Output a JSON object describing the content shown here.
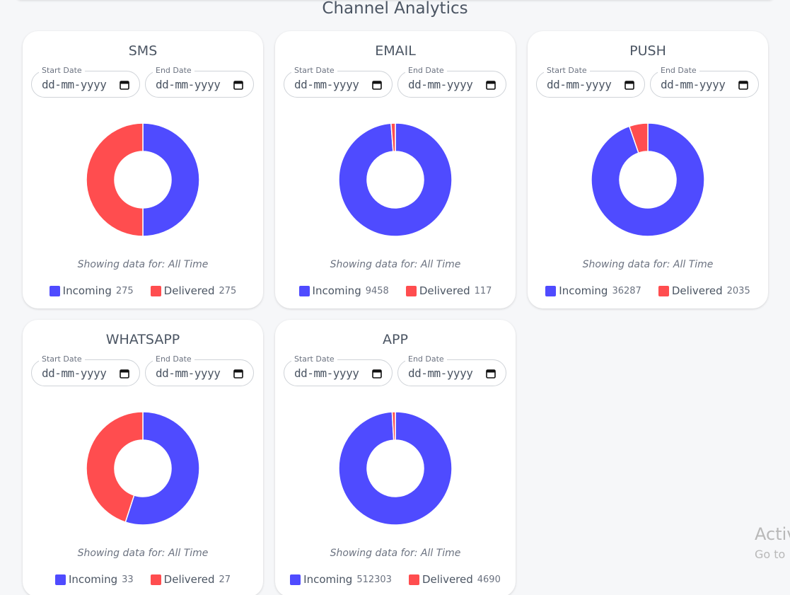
{
  "page_title": "Channel Analytics",
  "chart_data": [
    {
      "type": "pie",
      "donut": true,
      "title": "SMS",
      "categories": [
        "Incoming",
        "Delivered"
      ],
      "values": [
        275,
        275
      ],
      "colors": [
        "#4f4bff",
        "#ff4d4f"
      ]
    },
    {
      "type": "pie",
      "donut": true,
      "title": "EMAIL",
      "categories": [
        "Incoming",
        "Delivered"
      ],
      "values": [
        9458,
        117
      ],
      "colors": [
        "#4f4bff",
        "#ff4d4f"
      ]
    },
    {
      "type": "pie",
      "donut": true,
      "title": "PUSH",
      "categories": [
        "Incoming",
        "Delivered"
      ],
      "values": [
        36287,
        2035
      ],
      "colors": [
        "#4f4bff",
        "#ff4d4f"
      ]
    },
    {
      "type": "pie",
      "donut": true,
      "title": "WHATSAPP",
      "categories": [
        "Incoming",
        "Delivered"
      ],
      "values": [
        33,
        27
      ],
      "colors": [
        "#4f4bff",
        "#ff4d4f"
      ]
    },
    {
      "type": "pie",
      "donut": true,
      "title": "APP",
      "categories": [
        "Incoming",
        "Delivered"
      ],
      "values": [
        512303,
        4690
      ],
      "colors": [
        "#4f4bff",
        "#ff4d4f"
      ]
    }
  ],
  "cards": [
    {
      "start_label": "Start Date",
      "end_label": "End Date",
      "start_placeholder": "dd-mm-yyyy",
      "end_placeholder": "dd-mm-yyyy",
      "caption": "Showing data for: All Time"
    },
    {
      "start_label": "Start Date",
      "end_label": "End Date",
      "start_placeholder": "dd-mm-yyyy",
      "end_placeholder": "dd-mm-yyyy",
      "caption": "Showing data for: All Time"
    },
    {
      "start_label": "Start Date",
      "end_label": "End Date",
      "start_placeholder": "dd-mm-yyyy",
      "end_placeholder": "dd-mm-yyyy",
      "caption": "Showing data for: All Time"
    },
    {
      "start_label": "Start Date",
      "end_label": "End Date",
      "start_placeholder": "dd-mm-yyyy",
      "end_placeholder": "dd-mm-yyyy",
      "caption": "Showing data for: All Time"
    },
    {
      "start_label": "Start Date",
      "end_label": "End Date",
      "start_placeholder": "dd-mm-yyyy",
      "end_placeholder": "dd-mm-yyyy",
      "caption": "Showing data for: All Time"
    }
  ],
  "watermark": {
    "line1": "Activ",
    "line2": "Go to"
  }
}
